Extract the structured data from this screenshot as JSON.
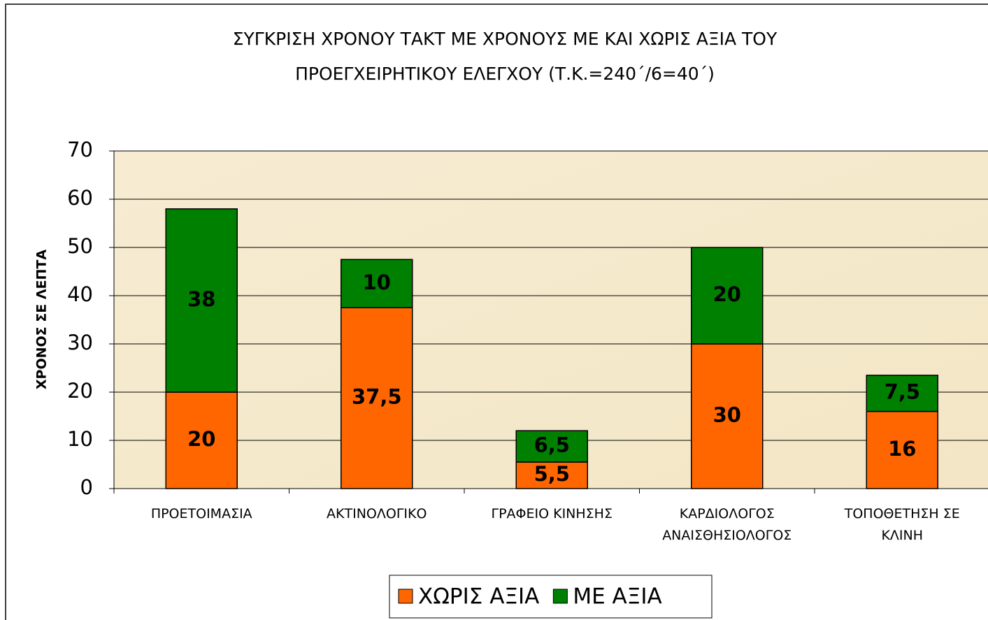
{
  "chart_data": {
    "type": "bar",
    "stacked": true,
    "title": "ΣΥΓΚΡΙΣΗ ΧΡΟΝΟΥ ΤΑΚΤ ΜΕ ΧΡΟΝΟΥΣ ΜΕ ΚΑΙ ΧΩΡΙΣ ΑΞΙΑ ΤΟΥ\nΠΡΟΕΓΧΕΙΡΗΤΙΚΟΥ ΕΛΕΓΧΟΥ (Τ.Κ.=240΄/6=40΄)",
    "ylabel": "ΧΡΟΝΟΣ ΣΕ ΛΕΠΤΑ",
    "categories": [
      "ΠΡΟΕΤΟΙΜΑΣΙΑ",
      "ΑΚΤΙΝΟΛΟΓΙΚΟ",
      "ΓΡΑΦΕΙΟ ΚΙΝΗΣΗΣ",
      "ΚΑΡΔΙΟΛΟΓΟΣ\nΑΝΑΙΣΘΗΣΙΟΛΟΓΟΣ",
      "ΤΟΠΟΘΕΤΗΣΗ ΣΕ\nΚΛΙΝΗ"
    ],
    "series": [
      {
        "name": "ΧΩΡΙΣ ΑΞΙΑ",
        "color": "#ff6600",
        "values": [
          20,
          37.5,
          5.5,
          30,
          16
        ],
        "value_labels": [
          "20",
          "37,5",
          "5,5",
          "30",
          "16"
        ]
      },
      {
        "name": "ΜΕ ΑΞΙΑ",
        "color": "#008000",
        "values": [
          38,
          10,
          6.5,
          20,
          7.5
        ],
        "value_labels": [
          "38",
          "10",
          "6,5",
          "20",
          "7,5"
        ]
      }
    ],
    "ylim": [
      0,
      70
    ],
    "yticks": [
      0,
      10,
      20,
      30,
      40,
      50,
      60,
      70
    ],
    "grid": true,
    "legend": "bottom"
  }
}
